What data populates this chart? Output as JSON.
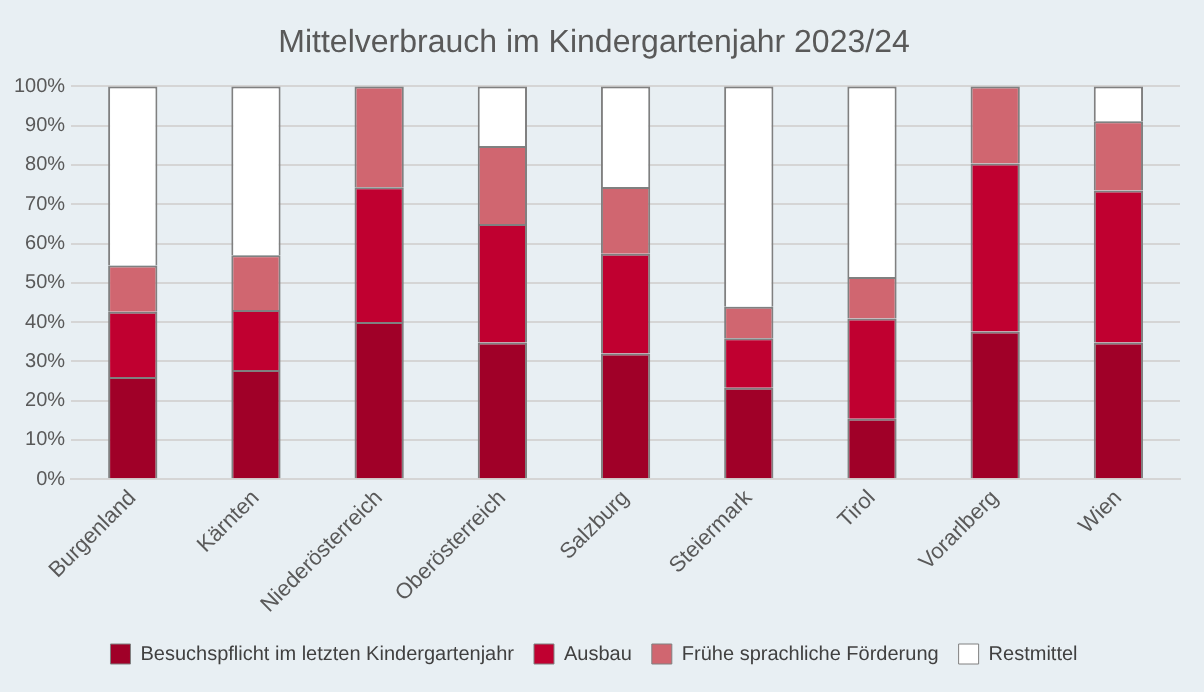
{
  "chart_data": {
    "type": "bar",
    "title": "Mittelverbrauch im Kindergartenjahr 2023/24",
    "stacked": true,
    "legend": "bottom",
    "grid": "y",
    "categories": [
      "Burgenland",
      "Kärnten",
      "Niederösterreich",
      "Oberösterreich",
      "Salzburg",
      "Steiermark",
      "Tirol",
      "Vorarlberg",
      "Wien"
    ],
    "series": [
      {
        "name": "Besuchspflicht im letzten Kindergartenjahr",
        "color": "#a00028",
        "values": [
          26,
          27.8,
          40,
          34.8,
          32,
          23.3,
          15.4,
          37.6,
          34.8
        ]
      },
      {
        "name": "Ausbau",
        "color": "#c00030",
        "values": [
          16.6,
          15.3,
          34.3,
          30.2,
          25.4,
          12.6,
          25.5,
          42.8,
          38.7
        ]
      },
      {
        "name": "Frühe sprachliche Förderung",
        "color": "#d06670",
        "values": [
          11.8,
          13.9,
          25.7,
          19.8,
          17,
          8,
          10.6,
          19.6,
          17.6
        ]
      },
      {
        "name": "Restmittel",
        "color": "#ffffff",
        "values": [
          45.6,
          43,
          0,
          15.2,
          25.6,
          56.1,
          48.5,
          0,
          8.9
        ]
      }
    ],
    "ylim": [
      0,
      100
    ],
    "yticks": [
      {
        "value": 0,
        "label": "0%"
      },
      {
        "value": 10,
        "label": "10%"
      },
      {
        "value": 20,
        "label": "20%"
      },
      {
        "value": 30,
        "label": "30%"
      },
      {
        "value": 40,
        "label": "40%"
      },
      {
        "value": 50,
        "label": "50%"
      },
      {
        "value": 60,
        "label": "60%"
      },
      {
        "value": 70,
        "label": "70%"
      },
      {
        "value": 80,
        "label": "80%"
      },
      {
        "value": 90,
        "label": "90%"
      },
      {
        "value": 100,
        "label": "100%"
      }
    ]
  }
}
